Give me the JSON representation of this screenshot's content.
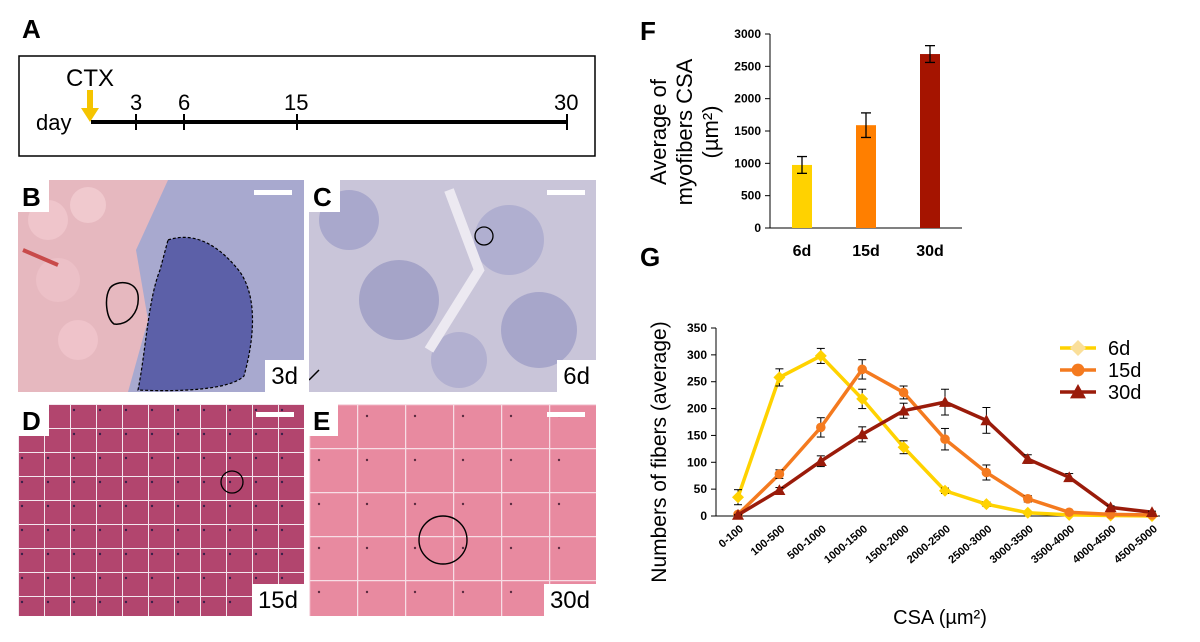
{
  "panels": {
    "A": "A",
    "B": "B",
    "C": "C",
    "D": "D",
    "E": "E",
    "F": "F",
    "G": "G"
  },
  "timeline": {
    "ctx_label": "CTX",
    "day_label": "day",
    "ticks": [
      "3",
      "6",
      "15",
      "30"
    ],
    "arrow_color": "#f5c400"
  },
  "micrographs": {
    "B": {
      "label": "3d"
    },
    "C": {
      "label": "6d"
    },
    "D": {
      "label": "15d"
    },
    "E": {
      "label": "30d"
    }
  },
  "chart_data": [
    {
      "id": "F",
      "type": "bar",
      "categories": [
        "6d",
        "15d",
        "30d"
      ],
      "values": [
        975,
        1590,
        2690
      ],
      "errors": [
        130,
        190,
        130
      ],
      "colors": [
        "#ffd200",
        "#ff7f00",
        "#a51400"
      ],
      "ylabel_lines": [
        "Average of",
        "myofibers CSA",
        "(µm²)"
      ],
      "ylim": [
        0,
        3000
      ],
      "yticks": [
        "0",
        "500",
        "1000",
        "1500",
        "2000",
        "2500",
        "3000"
      ]
    },
    {
      "id": "G",
      "type": "line",
      "categories": [
        "0-100",
        "100-500",
        "500-1000",
        "1000-1500",
        "1500-2000",
        "2000-2500",
        "2500-3000",
        "3000-3500",
        "3500-4000",
        "4000-4500",
        "4500-5000"
      ],
      "series": [
        {
          "name": "6d",
          "color": "#ffd200",
          "marker": "diamond",
          "values": [
            35,
            258,
            298,
            218,
            128,
            47,
            22,
            6,
            2,
            1,
            0
          ],
          "errors": [
            14,
            16,
            14,
            18,
            12,
            5,
            4,
            2,
            1,
            1,
            0
          ]
        },
        {
          "name": "15d",
          "color": "#f47a1f",
          "marker": "circle",
          "values": [
            3,
            78,
            165,
            273,
            230,
            143,
            81,
            32,
            7,
            3,
            2
          ],
          "errors": [
            2,
            8,
            18,
            18,
            12,
            20,
            14,
            6,
            3,
            1,
            1
          ]
        },
        {
          "name": "30d",
          "color": "#9a1b0a",
          "marker": "triangle",
          "values": [
            2,
            48,
            102,
            152,
            196,
            212,
            178,
            106,
            72,
            16,
            7
          ],
          "errors": [
            1,
            5,
            10,
            14,
            14,
            24,
            24,
            8,
            7,
            3,
            2
          ]
        }
      ],
      "xlabel": "CSA (µm²)",
      "ylabel": "Numbers of fibers (average)",
      "ylim": [
        0,
        350
      ],
      "yticks": [
        "0",
        "50",
        "100",
        "150",
        "200",
        "250",
        "300",
        "350"
      ],
      "legend": [
        "6d",
        "15d",
        "30d"
      ]
    }
  ]
}
